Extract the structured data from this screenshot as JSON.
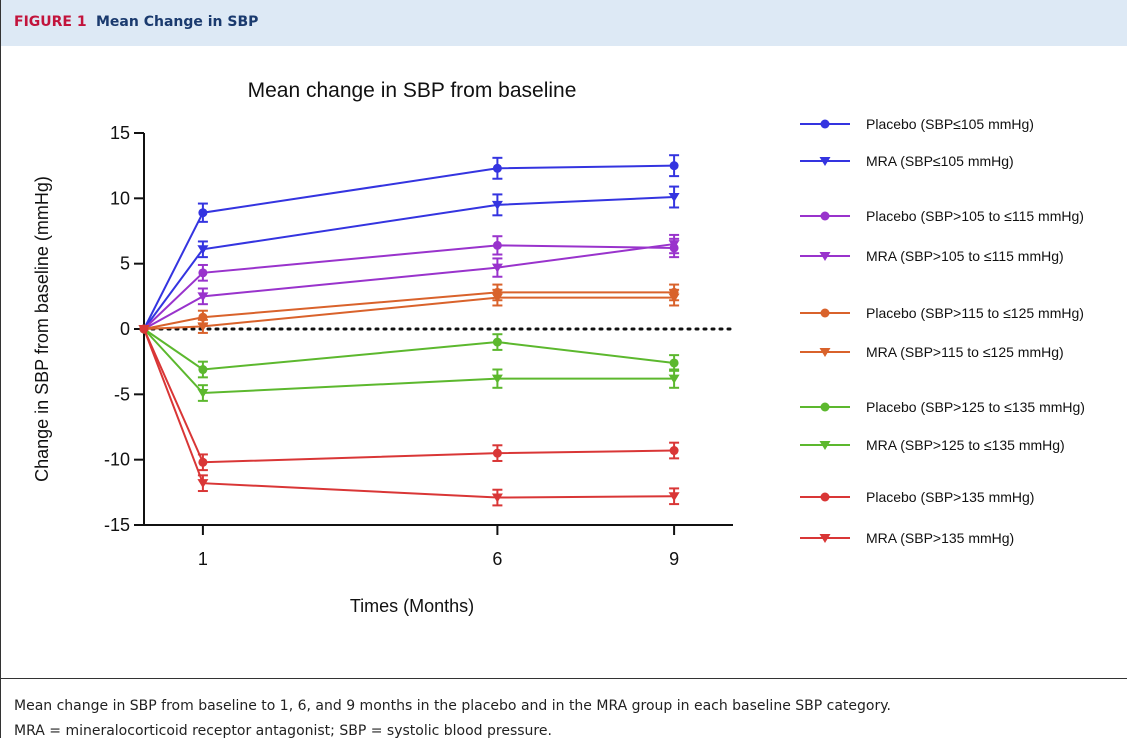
{
  "header": {
    "label": "FIGURE 1",
    "title": "Mean Change in SBP"
  },
  "chart_data": {
    "type": "line",
    "title": "Mean change in SBP from baseline",
    "x_label": "Times (Months)",
    "y_label": "Change in SBP from baseline (mmHg)",
    "x": [
      0,
      1,
      6,
      9
    ],
    "xlim": [
      0,
      10
    ],
    "xticks": [
      1,
      6,
      9
    ],
    "ylim": [
      -15,
      15
    ],
    "yticks": [
      15,
      10,
      5,
      0,
      -5,
      -10,
      -15
    ],
    "hline": 0,
    "series": [
      {
        "name": "Placebo (SBP≤105 mmHg)",
        "color": "#3434e0",
        "marker": "circle",
        "values": [
          0,
          8.9,
          12.3,
          12.5
        ],
        "errors": [
          null,
          0.7,
          0.8,
          0.8
        ]
      },
      {
        "name": "MRA (SBP≤105 mmHg)",
        "color": "#3434e0",
        "marker": "triangle",
        "values": [
          0,
          6.1,
          9.5,
          10.1
        ],
        "errors": [
          null,
          0.6,
          0.8,
          0.8
        ]
      },
      {
        "name": "Placebo (SBP>105 to ≤115 mmHg)",
        "color": "#9933cc",
        "marker": "circle",
        "values": [
          0,
          4.3,
          6.4,
          6.2
        ],
        "errors": [
          null,
          0.6,
          0.7,
          0.7
        ]
      },
      {
        "name": "MRA (SBP>105 to ≤115 mmHg)",
        "color": "#9933cc",
        "marker": "triangle",
        "values": [
          0,
          2.5,
          4.7,
          6.5
        ],
        "errors": [
          null,
          0.6,
          0.7,
          0.7
        ]
      },
      {
        "name": "Placebo (SBP>115 to ≤125 mmHg)",
        "color": "#d9622b",
        "marker": "circle",
        "values": [
          0,
          0.9,
          2.8,
          2.8
        ],
        "errors": [
          null,
          0.5,
          0.6,
          0.6
        ]
      },
      {
        "name": "MRA (SBP>115 to ≤125 mmHg)",
        "color": "#d9622b",
        "marker": "triangle",
        "values": [
          0,
          0.2,
          2.4,
          2.4
        ],
        "errors": [
          null,
          0.5,
          0.6,
          0.6
        ]
      },
      {
        "name": "Placebo (SBP>125 to ≤135 mmHg)",
        "color": "#5cb82e",
        "marker": "circle",
        "values": [
          0,
          -3.1,
          -1.0,
          -2.6
        ],
        "errors": [
          null,
          0.6,
          0.6,
          0.6
        ]
      },
      {
        "name": "MRA (SBP>125 to ≤135 mmHg)",
        "color": "#5cb82e",
        "marker": "triangle",
        "values": [
          0,
          -4.9,
          -3.8,
          -3.8
        ],
        "errors": [
          null,
          0.6,
          0.7,
          0.7
        ]
      },
      {
        "name": "Placebo (SBP>135 mmHg)",
        "color": "#d93636",
        "marker": "circle",
        "values": [
          0,
          -10.2,
          -9.5,
          -9.3
        ],
        "errors": [
          null,
          0.6,
          0.6,
          0.6
        ]
      },
      {
        "name": "MRA (SBP>135 mmHg)",
        "color": "#d93636",
        "marker": "triangle",
        "values": [
          0,
          -11.8,
          -12.9,
          -12.8
        ],
        "errors": [
          null,
          0.6,
          0.6,
          0.6
        ]
      }
    ]
  },
  "caption": [
    "Mean change in SBP from baseline to 1, 6, and 9 months in the placebo and in the MRA group in each baseline SBP category.",
    "MRA = mineralocorticoid receptor antagonist; SBP = systolic blood pressure."
  ]
}
